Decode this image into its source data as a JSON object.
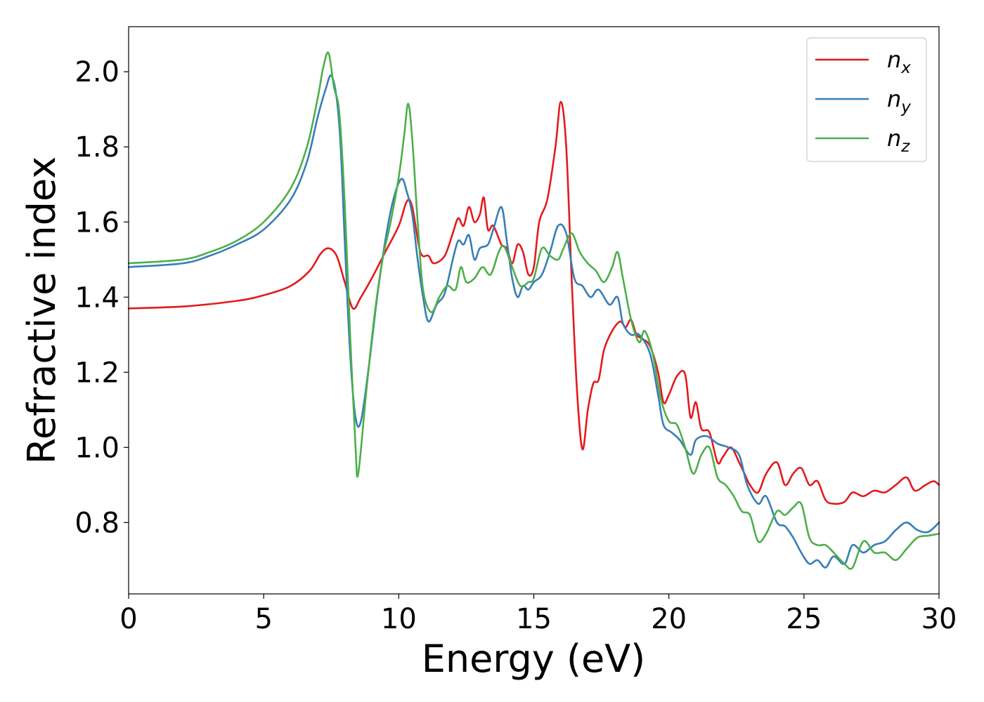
{
  "chart_data": {
    "type": "line",
    "title": "",
    "xlabel": "Energy (eV)",
    "ylabel": "Refractive index",
    "xlim": [
      0,
      30
    ],
    "ylim": [
      0.61,
      2.12
    ],
    "xticks": [
      0,
      5,
      10,
      15,
      20,
      25,
      30
    ],
    "xtick_labels": [
      "0",
      "5",
      "10",
      "15",
      "20",
      "25",
      "30"
    ],
    "yticks": [
      0.8,
      1.0,
      1.2,
      1.4,
      1.6,
      1.8,
      2.0
    ],
    "ytick_labels": [
      "0.8",
      "1.0",
      "1.2",
      "1.4",
      "1.6",
      "1.8",
      "2.0"
    ],
    "grid": false,
    "legend": {
      "placement": "top-right",
      "entries": [
        {
          "base": "n",
          "sub": "x",
          "color": "#e41a1c"
        },
        {
          "base": "n",
          "sub": "y",
          "color": "#377eb8"
        },
        {
          "base": "n",
          "sub": "z",
          "color": "#4daf4a"
        }
      ]
    },
    "series": [
      {
        "name": "n_x",
        "color": "#e41a1c",
        "points": [
          [
            0,
            1.37
          ],
          [
            2,
            1.375
          ],
          [
            4,
            1.39
          ],
          [
            5,
            1.405
          ],
          [
            6,
            1.43
          ],
          [
            6.7,
            1.47
          ],
          [
            7.1,
            1.515
          ],
          [
            7.4,
            1.53
          ],
          [
            7.7,
            1.51
          ],
          [
            8.0,
            1.44
          ],
          [
            8.3,
            1.37
          ],
          [
            8.6,
            1.4
          ],
          [
            9.0,
            1.45
          ],
          [
            9.5,
            1.52
          ],
          [
            10.0,
            1.59
          ],
          [
            10.3,
            1.655
          ],
          [
            10.5,
            1.64
          ],
          [
            10.8,
            1.52
          ],
          [
            11.1,
            1.51
          ],
          [
            11.3,
            1.49
          ],
          [
            11.7,
            1.51
          ],
          [
            12.0,
            1.57
          ],
          [
            12.2,
            1.61
          ],
          [
            12.4,
            1.59
          ],
          [
            12.6,
            1.64
          ],
          [
            12.8,
            1.6
          ],
          [
            13.0,
            1.62
          ],
          [
            13.15,
            1.665
          ],
          [
            13.3,
            1.58
          ],
          [
            13.5,
            1.59
          ],
          [
            13.8,
            1.54
          ],
          [
            14.0,
            1.53
          ],
          [
            14.2,
            1.49
          ],
          [
            14.4,
            1.54
          ],
          [
            14.6,
            1.52
          ],
          [
            14.8,
            1.46
          ],
          [
            15.0,
            1.48
          ],
          [
            15.2,
            1.6
          ],
          [
            15.5,
            1.66
          ],
          [
            15.8,
            1.8
          ],
          [
            16.0,
            1.92
          ],
          [
            16.2,
            1.8
          ],
          [
            16.4,
            1.45
          ],
          [
            16.6,
            1.15
          ],
          [
            16.8,
            0.995
          ],
          [
            17.0,
            1.1
          ],
          [
            17.2,
            1.17
          ],
          [
            17.4,
            1.18
          ],
          [
            17.6,
            1.26
          ],
          [
            17.9,
            1.31
          ],
          [
            18.2,
            1.335
          ],
          [
            18.4,
            1.32
          ],
          [
            18.6,
            1.34
          ],
          [
            18.8,
            1.3
          ],
          [
            19.0,
            1.29
          ],
          [
            19.3,
            1.27
          ],
          [
            19.6,
            1.2
          ],
          [
            19.8,
            1.12
          ],
          [
            20.0,
            1.14
          ],
          [
            20.3,
            1.19
          ],
          [
            20.6,
            1.195
          ],
          [
            20.8,
            1.08
          ],
          [
            21.0,
            1.12
          ],
          [
            21.2,
            1.05
          ],
          [
            21.5,
            1.04
          ],
          [
            21.8,
            0.96
          ],
          [
            22.0,
            0.975
          ],
          [
            22.3,
            1.0
          ],
          [
            22.6,
            0.96
          ],
          [
            22.8,
            0.93
          ],
          [
            23.0,
            0.9
          ],
          [
            23.3,
            0.88
          ],
          [
            23.6,
            0.93
          ],
          [
            24.0,
            0.96
          ],
          [
            24.3,
            0.9
          ],
          [
            24.6,
            0.93
          ],
          [
            24.9,
            0.945
          ],
          [
            25.2,
            0.9
          ],
          [
            25.5,
            0.91
          ],
          [
            25.8,
            0.86
          ],
          [
            26.1,
            0.85
          ],
          [
            26.5,
            0.855
          ],
          [
            26.8,
            0.88
          ],
          [
            27.2,
            0.87
          ],
          [
            27.6,
            0.885
          ],
          [
            28.0,
            0.88
          ],
          [
            28.4,
            0.9
          ],
          [
            28.8,
            0.92
          ],
          [
            29.1,
            0.885
          ],
          [
            29.5,
            0.9
          ],
          [
            29.8,
            0.91
          ],
          [
            30,
            0.9
          ]
        ]
      },
      {
        "name": "n_y",
        "color": "#377eb8",
        "points": [
          [
            0,
            1.48
          ],
          [
            2,
            1.49
          ],
          [
            3,
            1.51
          ],
          [
            4,
            1.54
          ],
          [
            5,
            1.58
          ],
          [
            6,
            1.66
          ],
          [
            6.6,
            1.76
          ],
          [
            7.0,
            1.88
          ],
          [
            7.3,
            1.955
          ],
          [
            7.5,
            1.99
          ],
          [
            7.7,
            1.93
          ],
          [
            7.85,
            1.8
          ],
          [
            8.0,
            1.55
          ],
          [
            8.2,
            1.25
          ],
          [
            8.4,
            1.08
          ],
          [
            8.6,
            1.07
          ],
          [
            8.9,
            1.22
          ],
          [
            9.2,
            1.4
          ],
          [
            9.5,
            1.55
          ],
          [
            9.8,
            1.66
          ],
          [
            10.1,
            1.715
          ],
          [
            10.3,
            1.68
          ],
          [
            10.5,
            1.62
          ],
          [
            10.7,
            1.5
          ],
          [
            10.9,
            1.4
          ],
          [
            11.1,
            1.335
          ],
          [
            11.4,
            1.38
          ],
          [
            11.7,
            1.41
          ],
          [
            12.0,
            1.5
          ],
          [
            12.2,
            1.55
          ],
          [
            12.4,
            1.54
          ],
          [
            12.6,
            1.565
          ],
          [
            12.8,
            1.5
          ],
          [
            13.0,
            1.53
          ],
          [
            13.3,
            1.54
          ],
          [
            13.5,
            1.58
          ],
          [
            13.8,
            1.64
          ],
          [
            14.0,
            1.55
          ],
          [
            14.2,
            1.45
          ],
          [
            14.4,
            1.4
          ],
          [
            14.6,
            1.43
          ],
          [
            14.8,
            1.42
          ],
          [
            15.0,
            1.44
          ],
          [
            15.3,
            1.46
          ],
          [
            15.6,
            1.52
          ],
          [
            15.9,
            1.59
          ],
          [
            16.2,
            1.57
          ],
          [
            16.5,
            1.45
          ],
          [
            16.8,
            1.43
          ],
          [
            17.1,
            1.4
          ],
          [
            17.4,
            1.42
          ],
          [
            17.8,
            1.38
          ],
          [
            18.1,
            1.4
          ],
          [
            18.3,
            1.33
          ],
          [
            18.6,
            1.3
          ],
          [
            18.9,
            1.3
          ],
          [
            19.3,
            1.25
          ],
          [
            19.6,
            1.14
          ],
          [
            19.8,
            1.06
          ],
          [
            20.1,
            1.04
          ],
          [
            20.4,
            1.02
          ],
          [
            20.8,
            0.98
          ],
          [
            21.0,
            1.02
          ],
          [
            21.4,
            1.03
          ],
          [
            21.8,
            1.01
          ],
          [
            22.2,
            1.0
          ],
          [
            22.6,
            0.98
          ],
          [
            22.9,
            0.9
          ],
          [
            23.3,
            0.85
          ],
          [
            23.6,
            0.87
          ],
          [
            24.0,
            0.8
          ],
          [
            24.3,
            0.79
          ],
          [
            24.6,
            0.76
          ],
          [
            24.9,
            0.72
          ],
          [
            25.2,
            0.69
          ],
          [
            25.5,
            0.7
          ],
          [
            25.8,
            0.68
          ],
          [
            26.1,
            0.71
          ],
          [
            26.5,
            0.69
          ],
          [
            26.8,
            0.74
          ],
          [
            27.2,
            0.72
          ],
          [
            27.6,
            0.74
          ],
          [
            28.0,
            0.75
          ],
          [
            28.4,
            0.78
          ],
          [
            28.8,
            0.8
          ],
          [
            29.2,
            0.78
          ],
          [
            29.6,
            0.775
          ],
          [
            30,
            0.8
          ]
        ]
      },
      {
        "name": "n_z",
        "color": "#4daf4a",
        "points": [
          [
            0,
            1.49
          ],
          [
            2,
            1.5
          ],
          [
            3,
            1.52
          ],
          [
            4,
            1.55
          ],
          [
            5,
            1.6
          ],
          [
            6,
            1.69
          ],
          [
            6.6,
            1.8
          ],
          [
            7.0,
            1.93
          ],
          [
            7.2,
            2.01
          ],
          [
            7.4,
            2.05
          ],
          [
            7.6,
            1.96
          ],
          [
            7.8,
            1.89
          ],
          [
            8.0,
            1.65
          ],
          [
            8.2,
            1.3
          ],
          [
            8.4,
            1.0
          ],
          [
            8.5,
            0.93
          ],
          [
            8.8,
            1.15
          ],
          [
            9.1,
            1.35
          ],
          [
            9.4,
            1.5
          ],
          [
            9.7,
            1.6
          ],
          [
            10.0,
            1.72
          ],
          [
            10.2,
            1.83
          ],
          [
            10.35,
            1.915
          ],
          [
            10.5,
            1.82
          ],
          [
            10.7,
            1.6
          ],
          [
            10.9,
            1.42
          ],
          [
            11.2,
            1.36
          ],
          [
            11.5,
            1.4
          ],
          [
            11.8,
            1.43
          ],
          [
            12.1,
            1.42
          ],
          [
            12.3,
            1.48
          ],
          [
            12.5,
            1.44
          ],
          [
            12.8,
            1.45
          ],
          [
            13.1,
            1.48
          ],
          [
            13.4,
            1.46
          ],
          [
            13.7,
            1.52
          ],
          [
            13.9,
            1.535
          ],
          [
            14.2,
            1.48
          ],
          [
            14.5,
            1.43
          ],
          [
            14.8,
            1.44
          ],
          [
            15.0,
            1.45
          ],
          [
            15.3,
            1.53
          ],
          [
            15.6,
            1.51
          ],
          [
            15.9,
            1.5
          ],
          [
            16.1,
            1.53
          ],
          [
            16.4,
            1.57
          ],
          [
            16.7,
            1.52
          ],
          [
            17.0,
            1.49
          ],
          [
            17.3,
            1.47
          ],
          [
            17.6,
            1.44
          ],
          [
            17.9,
            1.48
          ],
          [
            18.1,
            1.52
          ],
          [
            18.3,
            1.45
          ],
          [
            18.6,
            1.34
          ],
          [
            18.9,
            1.28
          ],
          [
            19.1,
            1.31
          ],
          [
            19.4,
            1.25
          ],
          [
            19.7,
            1.13
          ],
          [
            20.0,
            1.07
          ],
          [
            20.3,
            1.06
          ],
          [
            20.6,
            1.0
          ],
          [
            20.9,
            0.93
          ],
          [
            21.2,
            0.98
          ],
          [
            21.5,
            1.0
          ],
          [
            21.8,
            0.92
          ],
          [
            22.1,
            0.9
          ],
          [
            22.4,
            0.87
          ],
          [
            22.7,
            0.83
          ],
          [
            23.0,
            0.82
          ],
          [
            23.3,
            0.75
          ],
          [
            23.6,
            0.77
          ],
          [
            24.0,
            0.83
          ],
          [
            24.3,
            0.82
          ],
          [
            24.6,
            0.84
          ],
          [
            24.9,
            0.85
          ],
          [
            25.2,
            0.76
          ],
          [
            25.5,
            0.74
          ],
          [
            25.8,
            0.74
          ],
          [
            26.1,
            0.72
          ],
          [
            26.5,
            0.69
          ],
          [
            26.8,
            0.68
          ],
          [
            27.2,
            0.75
          ],
          [
            27.6,
            0.72
          ],
          [
            28.0,
            0.72
          ],
          [
            28.4,
            0.7
          ],
          [
            28.8,
            0.73
          ],
          [
            29.2,
            0.76
          ],
          [
            29.6,
            0.765
          ],
          [
            30,
            0.77
          ]
        ]
      }
    ]
  }
}
